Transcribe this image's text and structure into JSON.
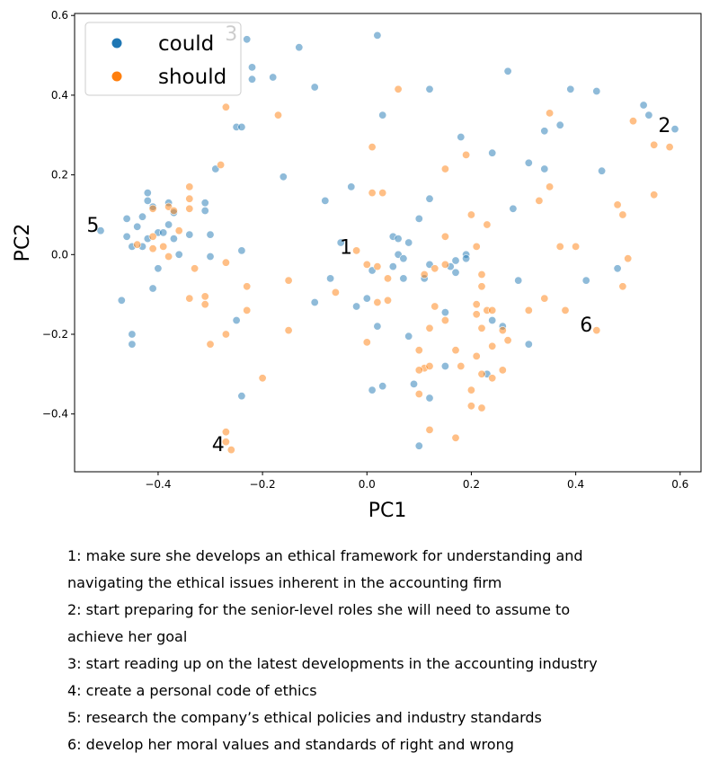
{
  "chart_data": {
    "type": "scatter",
    "title": "",
    "xlabel": "PC1",
    "ylabel": "PC2",
    "xlim": [
      -0.56,
      0.64
    ],
    "ylim": [
      -0.545,
      0.605
    ],
    "xticks": [
      -0.4,
      -0.2,
      0.0,
      0.2,
      0.4,
      0.6
    ],
    "xtick_labels": [
      "−0.4",
      "−0.2",
      "0.0",
      "0.2",
      "0.4",
      "0.6"
    ],
    "yticks": [
      -0.4,
      -0.2,
      0.0,
      0.2,
      0.4,
      0.6
    ],
    "ytick_labels": [
      "−0.4",
      "−0.2",
      "0.0",
      "0.2",
      "0.4",
      "0.6"
    ],
    "grid": false,
    "legend_position": "top-left",
    "series": [
      {
        "name": "could",
        "color": "#1f77b4",
        "points": [
          [
            -0.23,
            0.54
          ],
          [
            -0.13,
            0.52
          ],
          [
            0.02,
            0.55
          ],
          [
            -0.22,
            0.47
          ],
          [
            -0.22,
            0.44
          ],
          [
            -0.18,
            0.445
          ],
          [
            -0.1,
            0.42
          ],
          [
            0.12,
            0.415
          ],
          [
            0.27,
            0.46
          ],
          [
            0.39,
            0.415
          ],
          [
            0.44,
            0.41
          ],
          [
            0.53,
            0.375
          ],
          [
            0.54,
            0.35
          ],
          [
            0.59,
            0.315
          ],
          [
            0.37,
            0.325
          ],
          [
            0.34,
            0.31
          ],
          [
            -0.25,
            0.32
          ],
          [
            -0.24,
            0.32
          ],
          [
            0.03,
            0.35
          ],
          [
            0.18,
            0.295
          ],
          [
            0.24,
            0.255
          ],
          [
            0.31,
            0.23
          ],
          [
            0.34,
            0.215
          ],
          [
            0.45,
            0.21
          ],
          [
            -0.29,
            0.215
          ],
          [
            -0.16,
            0.195
          ],
          [
            -0.08,
            0.135
          ],
          [
            -0.03,
            0.17
          ],
          [
            0.12,
            0.14
          ],
          [
            0.28,
            0.115
          ],
          [
            -0.42,
            0.155
          ],
          [
            -0.42,
            0.135
          ],
          [
            -0.41,
            0.12
          ],
          [
            -0.43,
            0.095
          ],
          [
            -0.46,
            0.09
          ],
          [
            -0.44,
            0.07
          ],
          [
            -0.38,
            0.13
          ],
          [
            -0.37,
            0.105
          ],
          [
            -0.31,
            0.13
          ],
          [
            -0.31,
            0.11
          ],
          [
            -0.51,
            0.06
          ],
          [
            -0.4,
            0.055
          ],
          [
            -0.39,
            0.055
          ],
          [
            -0.38,
            0.075
          ],
          [
            -0.34,
            0.05
          ],
          [
            -0.3,
            0.05
          ],
          [
            -0.46,
            0.045
          ],
          [
            -0.42,
            0.04
          ],
          [
            -0.37,
            0.04
          ],
          [
            -0.45,
            0.02
          ],
          [
            -0.43,
            0.02
          ],
          [
            -0.24,
            0.01
          ],
          [
            -0.36,
            0.0
          ],
          [
            -0.3,
            -0.005
          ],
          [
            -0.4,
            -0.035
          ],
          [
            -0.41,
            -0.085
          ],
          [
            -0.47,
            -0.115
          ],
          [
            -0.45,
            -0.2
          ],
          [
            -0.45,
            -0.225
          ],
          [
            -0.25,
            -0.165
          ],
          [
            -0.24,
            -0.355
          ],
          [
            -0.05,
            0.03
          ],
          [
            0.05,
            0.045
          ],
          [
            0.06,
            0.04
          ],
          [
            0.08,
            0.03
          ],
          [
            0.1,
            0.09
          ],
          [
            0.06,
            0.0
          ],
          [
            0.07,
            -0.01
          ],
          [
            0.01,
            -0.04
          ],
          [
            0.05,
            -0.03
          ],
          [
            0.07,
            -0.06
          ],
          [
            0.11,
            -0.06
          ],
          [
            0.12,
            -0.025
          ],
          [
            0.16,
            -0.03
          ],
          [
            0.17,
            -0.015
          ],
          [
            0.19,
            0.0
          ],
          [
            0.19,
            -0.01
          ],
          [
            0.17,
            -0.045
          ],
          [
            0.0,
            -0.11
          ],
          [
            -0.02,
            -0.13
          ],
          [
            -0.07,
            -0.06
          ],
          [
            -0.1,
            -0.12
          ],
          [
            0.02,
            -0.18
          ],
          [
            0.08,
            -0.205
          ],
          [
            0.15,
            -0.145
          ],
          [
            0.24,
            -0.165
          ],
          [
            0.26,
            -0.18
          ],
          [
            0.29,
            -0.065
          ],
          [
            0.31,
            -0.225
          ],
          [
            0.42,
            -0.065
          ],
          [
            0.48,
            -0.035
          ],
          [
            0.23,
            -0.3
          ],
          [
            0.15,
            -0.28
          ],
          [
            0.09,
            -0.325
          ],
          [
            0.12,
            -0.36
          ],
          [
            0.03,
            -0.33
          ],
          [
            0.01,
            -0.34
          ],
          [
            0.1,
            -0.48
          ]
        ]
      },
      {
        "name": "should",
        "color": "#ff7f0e",
        "points": [
          [
            0.06,
            0.415
          ],
          [
            -0.27,
            0.37
          ],
          [
            -0.17,
            0.35
          ],
          [
            0.35,
            0.355
          ],
          [
            0.51,
            0.335
          ],
          [
            0.55,
            0.275
          ],
          [
            0.58,
            0.27
          ],
          [
            0.01,
            0.27
          ],
          [
            0.19,
            0.25
          ],
          [
            0.15,
            0.215
          ],
          [
            -0.28,
            0.225
          ],
          [
            -0.34,
            0.17
          ],
          [
            0.35,
            0.17
          ],
          [
            0.55,
            0.15
          ],
          [
            0.01,
            0.155
          ],
          [
            0.03,
            0.155
          ],
          [
            0.33,
            0.135
          ],
          [
            -0.34,
            0.14
          ],
          [
            -0.38,
            0.12
          ],
          [
            -0.37,
            0.11
          ],
          [
            -0.41,
            0.115
          ],
          [
            -0.34,
            0.115
          ],
          [
            0.48,
            0.125
          ],
          [
            0.49,
            0.1
          ],
          [
            0.2,
            0.1
          ],
          [
            0.23,
            0.075
          ],
          [
            -0.36,
            0.06
          ],
          [
            -0.41,
            0.045
          ],
          [
            -0.39,
            0.02
          ],
          [
            -0.44,
            0.025
          ],
          [
            -0.41,
            0.015
          ],
          [
            -0.38,
            -0.005
          ],
          [
            0.15,
            0.045
          ],
          [
            0.21,
            0.02
          ],
          [
            0.37,
            0.02
          ],
          [
            0.4,
            0.02
          ],
          [
            -0.02,
            0.01
          ],
          [
            0.5,
            -0.01
          ],
          [
            -0.33,
            -0.035
          ],
          [
            -0.27,
            -0.02
          ],
          [
            -0.15,
            -0.065
          ],
          [
            -0.06,
            -0.095
          ],
          [
            0.0,
            -0.025
          ],
          [
            0.02,
            -0.03
          ],
          [
            0.04,
            -0.06
          ],
          [
            0.04,
            -0.115
          ],
          [
            0.02,
            -0.12
          ],
          [
            0.11,
            -0.05
          ],
          [
            0.13,
            -0.035
          ],
          [
            0.15,
            -0.025
          ],
          [
            0.22,
            -0.05
          ],
          [
            0.22,
            -0.08
          ],
          [
            -0.34,
            -0.11
          ],
          [
            -0.31,
            -0.105
          ],
          [
            -0.31,
            -0.125
          ],
          [
            -0.23,
            -0.08
          ],
          [
            -0.23,
            -0.14
          ],
          [
            0.13,
            -0.13
          ],
          [
            0.21,
            -0.125
          ],
          [
            0.23,
            -0.14
          ],
          [
            0.24,
            -0.14
          ],
          [
            0.21,
            -0.15
          ],
          [
            0.34,
            -0.11
          ],
          [
            0.38,
            -0.14
          ],
          [
            0.31,
            -0.14
          ],
          [
            0.49,
            -0.08
          ],
          [
            -0.27,
            -0.2
          ],
          [
            -0.3,
            -0.225
          ],
          [
            -0.15,
            -0.19
          ],
          [
            0.0,
            -0.22
          ],
          [
            0.12,
            -0.185
          ],
          [
            0.15,
            -0.165
          ],
          [
            0.22,
            -0.185
          ],
          [
            0.26,
            -0.19
          ],
          [
            0.27,
            -0.215
          ],
          [
            0.24,
            -0.23
          ],
          [
            0.44,
            -0.19
          ],
          [
            0.17,
            -0.24
          ],
          [
            0.1,
            -0.24
          ],
          [
            0.11,
            -0.285
          ],
          [
            0.1,
            -0.29
          ],
          [
            0.12,
            -0.28
          ],
          [
            0.18,
            -0.28
          ],
          [
            0.21,
            -0.255
          ],
          [
            0.22,
            -0.3
          ],
          [
            0.24,
            -0.31
          ],
          [
            0.26,
            -0.29
          ],
          [
            -0.2,
            -0.31
          ],
          [
            0.1,
            -0.35
          ],
          [
            0.2,
            -0.34
          ],
          [
            0.2,
            -0.38
          ],
          [
            0.22,
            -0.385
          ],
          [
            0.12,
            -0.44
          ],
          [
            0.17,
            -0.46
          ],
          [
            -0.27,
            -0.445
          ],
          [
            -0.27,
            -0.47
          ],
          [
            -0.26,
            -0.49
          ]
        ]
      }
    ],
    "annotations": [
      {
        "text": "1",
        "x": -0.04,
        "y": 0.02
      },
      {
        "text": "2",
        "x": 0.57,
        "y": 0.325
      },
      {
        "text": "3",
        "x": -0.26,
        "y": 0.555
      },
      {
        "text": "4",
        "x": -0.285,
        "y": -0.475
      },
      {
        "text": "5",
        "x": -0.525,
        "y": 0.075
      },
      {
        "text": "6",
        "x": 0.42,
        "y": -0.175
      }
    ]
  },
  "captions": [
    "1: make sure she develops an ethical framework for understanding and",
    "navigating the ethical issues inherent in the accounting firm",
    "2: start preparing for the senior-level roles she will need to assume to",
    "achieve her goal",
    "3: start reading up on the latest developments in the accounting industry",
    "4: create a personal code of ethics",
    "5: research the company’s ethical policies and industry standards",
    "6: develop her moral values and standards of right and wrong"
  ]
}
